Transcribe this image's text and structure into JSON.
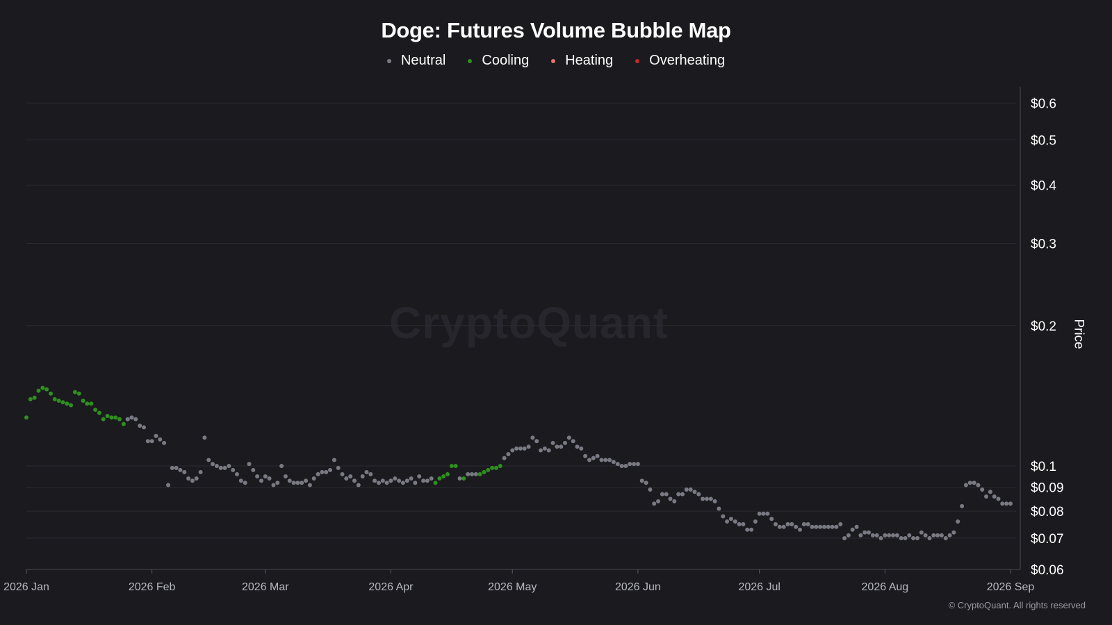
{
  "title": "Doge: Futures Volume Bubble Map",
  "watermark": "CryptoQuant",
  "copyright": "© CryptoQuant. All rights reserved",
  "legend": [
    {
      "label": "Neutral",
      "color": "#7a7a84"
    },
    {
      "label": "Cooling",
      "color": "#2f8f1f"
    },
    {
      "label": "Heating",
      "color": "#e57373"
    },
    {
      "label": "Overheating",
      "color": "#c62828"
    }
  ],
  "chart_data": {
    "type": "scatter",
    "title": "Doge: Futures Volume Bubble Map",
    "ylabel": "Price",
    "y_scale": "log",
    "ylim": [
      0.06,
      0.65
    ],
    "y_ticks": [
      {
        "value": 0.6,
        "label": "$0.6"
      },
      {
        "value": 0.5,
        "label": "$0.5"
      },
      {
        "value": 0.4,
        "label": "$0.4"
      },
      {
        "value": 0.3,
        "label": "$0.3"
      },
      {
        "value": 0.2,
        "label": "$0.2"
      },
      {
        "value": 0.1,
        "label": "$0.1"
      },
      {
        "value": 0.09,
        "label": "$0.09"
      },
      {
        "value": 0.08,
        "label": "$0.08"
      },
      {
        "value": 0.07,
        "label": "$0.07"
      },
      {
        "value": 0.06,
        "label": "$0.06"
      }
    ],
    "xlim": [
      "2026-01-01",
      "2026-09-01"
    ],
    "x_ticks": [
      {
        "value": "2026-01-01",
        "label": "2026 Jan"
      },
      {
        "value": "2026-02-01",
        "label": "2026 Feb"
      },
      {
        "value": "2026-03-01",
        "label": "2026 Mar"
      },
      {
        "value": "2026-04-01",
        "label": "2026 Apr"
      },
      {
        "value": "2026-05-01",
        "label": "2026 May"
      },
      {
        "value": "2026-06-01",
        "label": "2026 Jun"
      },
      {
        "value": "2026-07-01",
        "label": "2026 Jul"
      },
      {
        "value": "2026-08-01",
        "label": "2026 Aug"
      },
      {
        "value": "2026-09-01",
        "label": "2026 Sep"
      }
    ],
    "grid": true,
    "legend_position": "top-center",
    "series": [
      {
        "name": "Cooling",
        "color": "#2f8f1f",
        "points": [
          [
            "2026-01-01",
            0.127
          ],
          [
            "2026-01-02",
            0.139
          ],
          [
            "2026-01-03",
            0.14
          ],
          [
            "2026-01-04",
            0.145
          ],
          [
            "2026-01-05",
            0.147
          ],
          [
            "2026-01-06",
            0.146
          ],
          [
            "2026-01-07",
            0.143
          ],
          [
            "2026-01-08",
            0.139
          ],
          [
            "2026-01-09",
            0.138
          ],
          [
            "2026-01-10",
            0.137
          ],
          [
            "2026-01-11",
            0.136
          ],
          [
            "2026-01-12",
            0.135
          ],
          [
            "2026-01-13",
            0.144
          ],
          [
            "2026-01-14",
            0.143
          ],
          [
            "2026-01-15",
            0.138
          ],
          [
            "2026-01-16",
            0.136
          ],
          [
            "2026-01-17",
            0.136
          ],
          [
            "2026-01-18",
            0.132
          ],
          [
            "2026-01-19",
            0.13
          ],
          [
            "2026-01-20",
            0.126
          ],
          [
            "2026-01-21",
            0.128
          ],
          [
            "2026-01-22",
            0.127
          ],
          [
            "2026-01-23",
            0.127
          ],
          [
            "2026-01-24",
            0.126
          ],
          [
            "2026-01-25",
            0.123
          ],
          [
            "2026-04-12",
            0.092
          ],
          [
            "2026-04-13",
            0.094
          ],
          [
            "2026-04-14",
            0.095
          ],
          [
            "2026-04-15",
            0.096
          ],
          [
            "2026-04-16",
            0.1
          ],
          [
            "2026-04-17",
            0.1
          ],
          [
            "2026-04-19",
            0.094
          ],
          [
            "2026-04-23",
            0.096
          ],
          [
            "2026-04-24",
            0.097
          ],
          [
            "2026-04-25",
            0.098
          ],
          [
            "2026-04-26",
            0.099
          ],
          [
            "2026-04-27",
            0.099
          ],
          [
            "2026-04-28",
            0.1
          ]
        ]
      },
      {
        "name": "Neutral",
        "color": "#7a7a84",
        "points": [
          [
            "2026-01-26",
            0.126
          ],
          [
            "2026-01-27",
            0.127
          ],
          [
            "2026-01-28",
            0.126
          ],
          [
            "2026-01-29",
            0.122
          ],
          [
            "2026-01-30",
            0.121
          ],
          [
            "2026-01-31",
            0.113
          ],
          [
            "2026-02-01",
            0.113
          ],
          [
            "2026-02-02",
            0.116
          ],
          [
            "2026-02-03",
            0.114
          ],
          [
            "2026-02-04",
            0.112
          ],
          [
            "2026-02-05",
            0.091
          ],
          [
            "2026-02-06",
            0.099
          ],
          [
            "2026-02-07",
            0.099
          ],
          [
            "2026-02-08",
            0.098
          ],
          [
            "2026-02-09",
            0.097
          ],
          [
            "2026-02-10",
            0.094
          ],
          [
            "2026-02-11",
            0.093
          ],
          [
            "2026-02-12",
            0.094
          ],
          [
            "2026-02-13",
            0.097
          ],
          [
            "2026-02-14",
            0.115
          ],
          [
            "2026-02-15",
            0.103
          ],
          [
            "2026-02-16",
            0.101
          ],
          [
            "2026-02-17",
            0.1
          ],
          [
            "2026-02-18",
            0.099
          ],
          [
            "2026-02-19",
            0.099
          ],
          [
            "2026-02-20",
            0.1
          ],
          [
            "2026-02-21",
            0.098
          ],
          [
            "2026-02-22",
            0.096
          ],
          [
            "2026-02-23",
            0.093
          ],
          [
            "2026-02-24",
            0.092
          ],
          [
            "2026-02-25",
            0.101
          ],
          [
            "2026-02-26",
            0.098
          ],
          [
            "2026-02-27",
            0.095
          ],
          [
            "2026-02-28",
            0.093
          ],
          [
            "2026-03-01",
            0.095
          ],
          [
            "2026-03-02",
            0.094
          ],
          [
            "2026-03-03",
            0.091
          ],
          [
            "2026-03-04",
            0.092
          ],
          [
            "2026-03-05",
            0.1
          ],
          [
            "2026-03-06",
            0.095
          ],
          [
            "2026-03-07",
            0.093
          ],
          [
            "2026-03-08",
            0.092
          ],
          [
            "2026-03-09",
            0.092
          ],
          [
            "2026-03-10",
            0.092
          ],
          [
            "2026-03-11",
            0.093
          ],
          [
            "2026-03-12",
            0.091
          ],
          [
            "2026-03-13",
            0.094
          ],
          [
            "2026-03-14",
            0.096
          ],
          [
            "2026-03-15",
            0.097
          ],
          [
            "2026-03-16",
            0.097
          ],
          [
            "2026-03-17",
            0.098
          ],
          [
            "2026-03-18",
            0.103
          ],
          [
            "2026-03-19",
            0.099
          ],
          [
            "2026-03-20",
            0.096
          ],
          [
            "2026-03-21",
            0.094
          ],
          [
            "2026-03-22",
            0.095
          ],
          [
            "2026-03-23",
            0.093
          ],
          [
            "2026-03-24",
            0.091
          ],
          [
            "2026-03-25",
            0.095
          ],
          [
            "2026-03-26",
            0.097
          ],
          [
            "2026-03-27",
            0.096
          ],
          [
            "2026-03-28",
            0.093
          ],
          [
            "2026-03-29",
            0.092
          ],
          [
            "2026-03-30",
            0.093
          ],
          [
            "2026-03-31",
            0.092
          ],
          [
            "2026-04-01",
            0.093
          ],
          [
            "2026-04-02",
            0.094
          ],
          [
            "2026-04-03",
            0.093
          ],
          [
            "2026-04-04",
            0.092
          ],
          [
            "2026-04-05",
            0.093
          ],
          [
            "2026-04-06",
            0.094
          ],
          [
            "2026-04-07",
            0.092
          ],
          [
            "2026-04-08",
            0.095
          ],
          [
            "2026-04-09",
            0.093
          ],
          [
            "2026-04-10",
            0.093
          ],
          [
            "2026-04-11",
            0.094
          ],
          [
            "2026-04-18",
            0.094
          ],
          [
            "2026-04-20",
            0.096
          ],
          [
            "2026-04-21",
            0.096
          ],
          [
            "2026-04-22",
            0.096
          ],
          [
            "2026-04-29",
            0.104
          ],
          [
            "2026-04-30",
            0.106
          ],
          [
            "2026-05-01",
            0.108
          ],
          [
            "2026-05-02",
            0.109
          ],
          [
            "2026-05-03",
            0.109
          ],
          [
            "2026-05-04",
            0.109
          ],
          [
            "2026-05-05",
            0.11
          ],
          [
            "2026-05-06",
            0.115
          ],
          [
            "2026-05-07",
            0.113
          ],
          [
            "2026-05-08",
            0.108
          ],
          [
            "2026-05-09",
            0.109
          ],
          [
            "2026-05-10",
            0.108
          ],
          [
            "2026-05-11",
            0.112
          ],
          [
            "2026-05-12",
            0.11
          ],
          [
            "2026-05-13",
            0.11
          ],
          [
            "2026-05-14",
            0.112
          ],
          [
            "2026-05-15",
            0.115
          ],
          [
            "2026-05-16",
            0.113
          ],
          [
            "2026-05-17",
            0.11
          ],
          [
            "2026-05-18",
            0.109
          ],
          [
            "2026-05-19",
            0.105
          ],
          [
            "2026-05-20",
            0.103
          ],
          [
            "2026-05-21",
            0.104
          ],
          [
            "2026-05-22",
            0.105
          ],
          [
            "2026-05-23",
            0.103
          ],
          [
            "2026-05-24",
            0.103
          ],
          [
            "2026-05-25",
            0.103
          ],
          [
            "2026-05-26",
            0.102
          ],
          [
            "2026-05-27",
            0.101
          ],
          [
            "2026-05-28",
            0.1
          ],
          [
            "2026-05-29",
            0.1
          ],
          [
            "2026-05-30",
            0.101
          ],
          [
            "2026-05-31",
            0.101
          ],
          [
            "2026-06-01",
            0.101
          ],
          [
            "2026-06-02",
            0.093
          ],
          [
            "2026-06-03",
            0.092
          ],
          [
            "2026-06-04",
            0.089
          ],
          [
            "2026-06-05",
            0.083
          ],
          [
            "2026-06-06",
            0.084
          ],
          [
            "2026-06-07",
            0.087
          ],
          [
            "2026-06-08",
            0.087
          ],
          [
            "2026-06-09",
            0.085
          ],
          [
            "2026-06-10",
            0.084
          ],
          [
            "2026-06-11",
            0.087
          ],
          [
            "2026-06-12",
            0.087
          ],
          [
            "2026-06-13",
            0.089
          ],
          [
            "2026-06-14",
            0.089
          ],
          [
            "2026-06-15",
            0.088
          ],
          [
            "2026-06-16",
            0.087
          ],
          [
            "2026-06-17",
            0.085
          ],
          [
            "2026-06-18",
            0.085
          ],
          [
            "2026-06-19",
            0.085
          ],
          [
            "2026-06-20",
            0.084
          ],
          [
            "2026-06-21",
            0.081
          ],
          [
            "2026-06-22",
            0.078
          ],
          [
            "2026-06-23",
            0.076
          ],
          [
            "2026-06-24",
            0.077
          ],
          [
            "2026-06-25",
            0.076
          ],
          [
            "2026-06-26",
            0.075
          ],
          [
            "2026-06-27",
            0.075
          ],
          [
            "2026-06-28",
            0.073
          ],
          [
            "2026-06-29",
            0.073
          ],
          [
            "2026-06-30",
            0.076
          ],
          [
            "2026-07-01",
            0.079
          ],
          [
            "2026-07-02",
            0.079
          ],
          [
            "2026-07-03",
            0.079
          ],
          [
            "2026-07-04",
            0.077
          ],
          [
            "2026-07-05",
            0.075
          ],
          [
            "2026-07-06",
            0.074
          ],
          [
            "2026-07-07",
            0.074
          ],
          [
            "2026-07-08",
            0.075
          ],
          [
            "2026-07-09",
            0.075
          ],
          [
            "2026-07-10",
            0.074
          ],
          [
            "2026-07-11",
            0.073
          ],
          [
            "2026-07-12",
            0.075
          ],
          [
            "2026-07-13",
            0.075
          ],
          [
            "2026-07-14",
            0.074
          ],
          [
            "2026-07-15",
            0.074
          ],
          [
            "2026-07-16",
            0.074
          ],
          [
            "2026-07-17",
            0.074
          ],
          [
            "2026-07-18",
            0.074
          ],
          [
            "2026-07-19",
            0.074
          ],
          [
            "2026-07-20",
            0.074
          ],
          [
            "2026-07-21",
            0.075
          ],
          [
            "2026-07-22",
            0.07
          ],
          [
            "2026-07-23",
            0.071
          ],
          [
            "2026-07-24",
            0.073
          ],
          [
            "2026-07-25",
            0.074
          ],
          [
            "2026-07-26",
            0.071
          ],
          [
            "2026-07-27",
            0.072
          ],
          [
            "2026-07-28",
            0.072
          ],
          [
            "2026-07-29",
            0.071
          ],
          [
            "2026-07-30",
            0.071
          ],
          [
            "2026-07-31",
            0.07
          ],
          [
            "2026-08-01",
            0.071
          ],
          [
            "2026-08-02",
            0.071
          ],
          [
            "2026-08-03",
            0.071
          ],
          [
            "2026-08-04",
            0.071
          ],
          [
            "2026-08-05",
            0.07
          ],
          [
            "2026-08-06",
            0.07
          ],
          [
            "2026-08-07",
            0.071
          ],
          [
            "2026-08-08",
            0.07
          ],
          [
            "2026-08-09",
            0.07
          ],
          [
            "2026-08-10",
            0.072
          ],
          [
            "2026-08-11",
            0.071
          ],
          [
            "2026-08-12",
            0.07
          ],
          [
            "2026-08-13",
            0.071
          ],
          [
            "2026-08-14",
            0.071
          ],
          [
            "2026-08-15",
            0.071
          ],
          [
            "2026-08-16",
            0.07
          ],
          [
            "2026-08-17",
            0.071
          ],
          [
            "2026-08-18",
            0.072
          ],
          [
            "2026-08-19",
            0.076
          ],
          [
            "2026-08-20",
            0.082
          ],
          [
            "2026-08-21",
            0.091
          ],
          [
            "2026-08-22",
            0.092
          ],
          [
            "2026-08-23",
            0.092
          ],
          [
            "2026-08-24",
            0.091
          ],
          [
            "2026-08-25",
            0.089
          ],
          [
            "2026-08-26",
            0.086
          ],
          [
            "2026-08-27",
            0.088
          ],
          [
            "2026-08-28",
            0.086
          ],
          [
            "2026-08-29",
            0.085
          ],
          [
            "2026-08-30",
            0.083
          ],
          [
            "2026-08-31",
            0.083
          ],
          [
            "2026-09-01",
            0.083
          ]
        ]
      }
    ]
  }
}
